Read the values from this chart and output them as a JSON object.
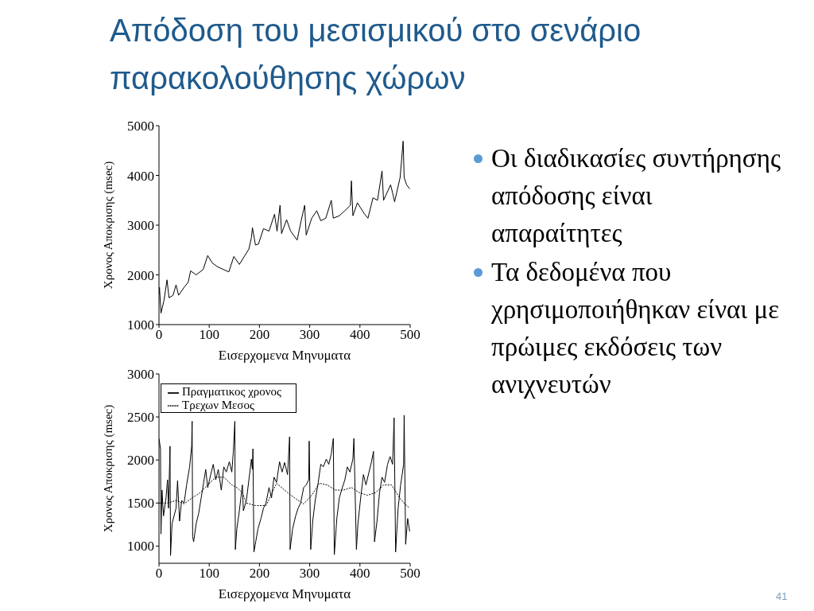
{
  "chart_data": [
    {
      "type": "line",
      "title": "Απόδοση του μεσισμικού στο σενάριο παρακολούθησης χώρων",
      "xlabel": "Εισερχομενα Μηνυματα",
      "ylabel": "Χρονος Αποκρισης (msec)",
      "xlim": [
        0,
        500
      ],
      "ylim": [
        1000,
        5000
      ],
      "xticks": [
        0,
        100,
        200,
        300,
        400,
        500
      ],
      "yticks": [
        1000,
        2000,
        3000,
        4000,
        5000
      ],
      "series": [
        {
          "color": "#000000",
          "x": [
            0,
            1,
            4,
            10,
            16,
            20,
            28,
            34,
            39,
            50,
            58,
            63,
            74,
            88,
            97,
            106,
            117,
            128,
            139,
            149,
            160,
            171,
            179,
            184,
            186,
            192,
            198,
            208,
            219,
            230,
            235,
            241,
            244,
            254,
            262,
            275,
            283,
            290,
            293,
            304,
            314,
            322,
            332,
            343,
            347,
            359,
            370,
            381,
            383,
            386,
            395,
            408,
            416,
            426,
            435,
            444,
            447,
            461,
            465,
            469,
            480,
            486,
            488,
            493,
            499
          ],
          "values": [
            1600,
            1750,
            1230,
            1490,
            1900,
            1540,
            1590,
            1800,
            1590,
            1750,
            1850,
            2080,
            2000,
            2110,
            2390,
            2240,
            2160,
            2110,
            2060,
            2370,
            2210,
            2390,
            2520,
            2750,
            2950,
            2600,
            2620,
            2930,
            2880,
            3220,
            2880,
            3400,
            2830,
            3110,
            2880,
            2700,
            3090,
            3400,
            2800,
            3140,
            3290,
            3090,
            3140,
            3500,
            3140,
            3190,
            3290,
            3400,
            3890,
            3190,
            3450,
            3240,
            3140,
            3550,
            3500,
            4090,
            3500,
            3810,
            3650,
            3470,
            3960,
            4690,
            3960,
            3810,
            3730
          ]
        }
      ]
    },
    {
      "type": "line",
      "xlabel": "Εισερχομενα Μηνυματα",
      "ylabel": "Χρονος Αποκρισης (msec)",
      "xlim": [
        0,
        500
      ],
      "ylim": [
        800,
        3000
      ],
      "xticks": [
        0,
        100,
        200,
        300,
        400,
        500
      ],
      "yticks": [
        1000,
        1500,
        2000,
        2500,
        3000
      ],
      "legend": "top left",
      "series": [
        {
          "name": "Πραγματικος χρονος",
          "color": "#000000",
          "line_style": "solid",
          "x": [
            0,
            3,
            4,
            6,
            9,
            14,
            17,
            19,
            22,
            23,
            26,
            34,
            37,
            41,
            45,
            50,
            55,
            61,
            65,
            66,
            67,
            69,
            74,
            79,
            84,
            89,
            93,
            97,
            103,
            108,
            113,
            118,
            124,
            129,
            134,
            140,
            145,
            148,
            151,
            152,
            155,
            160,
            166,
            168,
            174,
            179,
            184,
            186,
            187,
            189,
            197,
            203,
            208,
            213,
            219,
            224,
            229,
            234,
            240,
            245,
            250,
            256,
            260,
            261,
            266,
            272,
            277,
            282,
            288,
            293,
            298,
            299,
            302,
            306,
            311,
            317,
            322,
            327,
            333,
            338,
            343,
            347,
            349,
            354,
            359,
            365,
            370,
            375,
            380,
            386,
            388,
            393,
            396,
            402,
            407,
            412,
            418,
            423,
            427,
            429,
            434,
            439,
            444,
            449,
            455,
            460,
            465,
            468,
            471,
            476,
            481,
            487,
            488,
            491,
            495,
            499
          ],
          "values": [
            2250,
            2130,
            1140,
            1650,
            1350,
            1560,
            1770,
            1440,
            2160,
            890,
            1260,
            1440,
            1760,
            1290,
            1530,
            1500,
            1710,
            1920,
            2160,
            2450,
            1110,
            1050,
            1260,
            1380,
            1560,
            1740,
            1890,
            1680,
            1830,
            1950,
            1770,
            1890,
            1650,
            1920,
            1860,
            1980,
            1860,
            2100,
            2450,
            960,
            1200,
            1410,
            1710,
            1410,
            1530,
            1770,
            2010,
            1890,
            2130,
            930,
            1200,
            1320,
            1440,
            1500,
            1680,
            1560,
            1800,
            1740,
            1980,
            1860,
            1970,
            1830,
            2270,
            960,
            1200,
            1350,
            1440,
            1500,
            1680,
            1710,
            1770,
            2220,
            960,
            1290,
            1530,
            1740,
            1950,
            1920,
            2010,
            1950,
            2070,
            2250,
            900,
            1320,
            1560,
            1680,
            1770,
            1920,
            1860,
            2010,
            2250,
            960,
            1260,
            1590,
            1830,
            1710,
            1860,
            1980,
            2100,
            1050,
            1290,
            1620,
            1800,
            1740,
            1950,
            2040,
            1950,
            2490,
            930,
            1440,
            1710,
            1950,
            2520,
            1020,
            1320,
            1170
          ]
        },
        {
          "name": "Τρεχων Μεσος",
          "color": "#000000",
          "line_style": "dotted",
          "x": [
            0,
            18,
            34,
            50,
            66,
            82,
            97,
            113,
            129,
            145,
            155,
            166,
            174,
            192,
            213,
            234,
            256,
            277,
            288,
            304,
            319,
            335,
            351,
            367,
            383,
            399,
            415,
            431,
            447,
            463,
            479,
            489,
            499
          ],
          "values": [
            1500,
            1500,
            1530,
            1490,
            1560,
            1620,
            1710,
            1800,
            1800,
            1710,
            1680,
            1620,
            1500,
            1470,
            1470,
            1730,
            1620,
            1530,
            1490,
            1590,
            1730,
            1710,
            1650,
            1650,
            1680,
            1620,
            1590,
            1620,
            1710,
            1710,
            1560,
            1490,
            1440
          ]
        }
      ]
    },
    {
      "type": "other",
      "annotations": [
        "Οι διαδικασίες συντήρησης απόδοσης είναι απαραίτητες",
        "Τα δεδομένα που χρησιμοποιήθηκαν είναι με πρώιμες εκδόσεις των ανιχνευτών",
        "41"
      ]
    }
  ]
}
